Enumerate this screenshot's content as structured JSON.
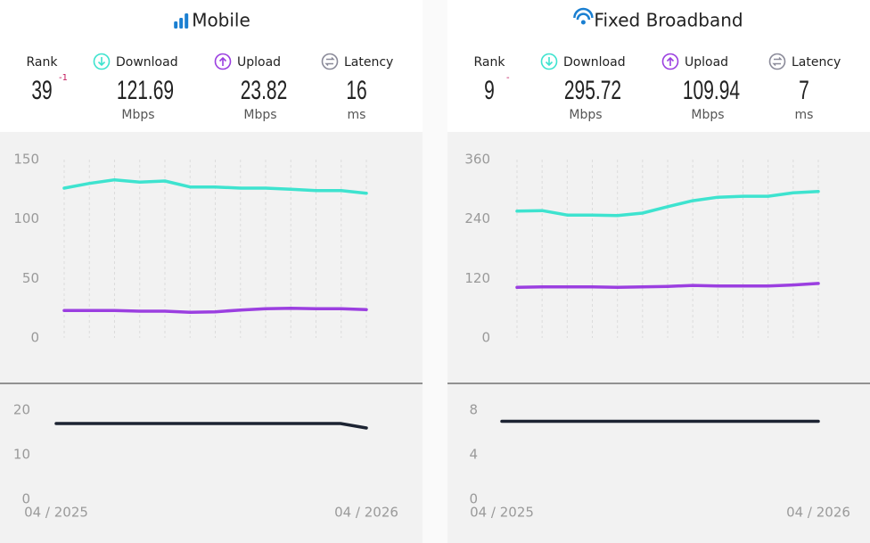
{
  "panels": [
    {
      "title": "Mobile",
      "rank": {
        "label": "Rank",
        "value": 39,
        "change": -1
      },
      "metrics": [
        {
          "label": "Download",
          "value": 121.69,
          "unit": "Mbps"
        },
        {
          "label": "Upload",
          "value": 23.82,
          "unit": "Mbps"
        },
        {
          "label": "Latency",
          "value": 16,
          "unit": "ms"
        }
      ]
    },
    {
      "title": "Fixed Broadband",
      "rank": {
        "label": "Rank",
        "value": 9,
        "change": "-"
      },
      "metrics": [
        {
          "label": "Download",
          "value": 295.72,
          "unit": "Mbps"
        },
        {
          "label": "Upload",
          "value": 109.94,
          "unit": "Mbps"
        },
        {
          "label": "Latency",
          "value": 7,
          "unit": "ms"
        }
      ]
    }
  ],
  "chart_data": [
    {
      "type": "line",
      "ylim": [
        0,
        150
      ],
      "yticks": [
        0,
        50,
        100,
        150
      ],
      "series": [
        {
          "color": "#3ee3cf",
          "values": [
            126,
            130,
            133,
            131,
            132,
            127,
            127,
            126,
            126,
            125,
            124,
            124,
            121.69
          ]
        },
        {
          "color": "#9b3fe0",
          "values": [
            23,
            23,
            23,
            22.5,
            22.5,
            21.5,
            22,
            23.5,
            24.5,
            25,
            24.5,
            24.5,
            23.82
          ]
        }
      ]
    },
    {
      "type": "line",
      "ylim": [
        0,
        20
      ],
      "yticks": [
        0,
        10,
        20
      ],
      "categories": [
        "04 / 2025",
        null,
        null,
        null,
        null,
        null,
        null,
        null,
        null,
        null,
        null,
        null,
        "04 / 2026"
      ],
      "series": [
        {
          "color": "#1d2433",
          "values": [
            17,
            17,
            17,
            17,
            17,
            17,
            17,
            17,
            17,
            17,
            17,
            17,
            16
          ]
        }
      ]
    },
    {
      "type": "line",
      "ylim": [
        0,
        360
      ],
      "yticks": [
        0,
        120,
        240,
        360
      ],
      "series": [
        {
          "color": "#3ee3cf",
          "values": [
            256,
            257,
            248,
            248,
            247,
            252,
            265,
            277,
            284,
            286,
            286,
            293,
            295.72
          ]
        },
        {
          "color": "#9b3fe0",
          "values": [
            102,
            103,
            103,
            103,
            102,
            103,
            104,
            106,
            105,
            105,
            105,
            107,
            109.94
          ]
        }
      ]
    },
    {
      "type": "line",
      "ylim": [
        0,
        8
      ],
      "yticks": [
        0,
        4,
        8
      ],
      "categories": [
        "04 / 2025",
        null,
        null,
        null,
        null,
        null,
        null,
        null,
        null,
        null,
        null,
        null,
        "04 / 2026"
      ],
      "series": [
        {
          "color": "#1d2433",
          "values": [
            7,
            7,
            7,
            7,
            7,
            7,
            7,
            7,
            7,
            7,
            7,
            7,
            7
          ]
        }
      ]
    }
  ]
}
